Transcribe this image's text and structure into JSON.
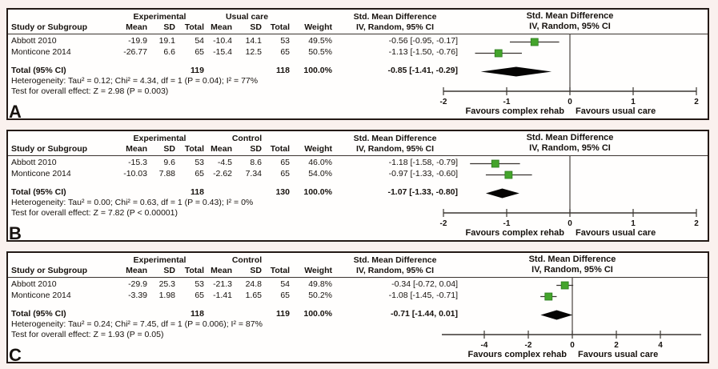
{
  "colors": {
    "marker": "#44a42c",
    "marker_edge": "#2c7a1d",
    "diamond": "#050403",
    "axis_line": "#3a3531",
    "panel_border": "#241a16",
    "panel_background": "#fffefd",
    "page_background": "#faf1ee"
  },
  "chart_data": [
    {
      "type": "forest",
      "panel_label": "A",
      "group1": "Experimental",
      "group2": "Usual care",
      "smd_header": "Std. Mean Difference",
      "col_study": "Study or Subgroup",
      "col_mean": "Mean",
      "col_sd": "SD",
      "col_total": "Total",
      "col_weight": "Weight",
      "col_ci": "IV, Random, 95% CI",
      "plot_header_line1": "Std. Mean Difference",
      "plot_header_line2": "IV, Random, 95% CI",
      "studies": [
        {
          "study": "Abbott 2010",
          "exp_mean": "-19.9",
          "exp_sd": "19.1",
          "exp_total": "54",
          "ctl_mean": "-10.4",
          "ctl_sd": "14.1",
          "ctl_total": "53",
          "weight": "49.5%",
          "ci_text": "-0.56 [-0.95, -0.17]",
          "est": -0.56,
          "lo": -0.95,
          "hi": -0.17
        },
        {
          "study": "Monticone 2014",
          "exp_mean": "-26.77",
          "exp_sd": "6.6",
          "exp_total": "65",
          "ctl_mean": "-15.4",
          "ctl_sd": "12.5",
          "ctl_total": "65",
          "weight": "50.5%",
          "ci_text": "-1.13 [-1.50, -0.76]",
          "est": -1.13,
          "lo": -1.5,
          "hi": -0.76
        }
      ],
      "total": {
        "label": "Total (95% CI)",
        "exp_total": "119",
        "ctl_total": "118",
        "weight": "100.0%",
        "ci_text": "-0.85 [-1.41, -0.29]",
        "est": -0.85,
        "lo": -1.41,
        "hi": -0.29
      },
      "heterogeneity": "Heterogeneity: Tau² = 0.12; Chi² = 4.34, df = 1 (P = 0.04); I² = 77%",
      "overall_test": "Test for overall effect: Z = 2.98 (P = 0.003)",
      "axis": {
        "min": -2,
        "max": 2,
        "ticks": [
          -2,
          -1,
          0,
          1,
          2
        ]
      },
      "favours_left": "Favours complex rehab",
      "favours_right": "Favours usual care"
    },
    {
      "type": "forest",
      "panel_label": "B",
      "group1": "Experimental",
      "group2": "Control",
      "smd_header": "Std. Mean Difference",
      "col_study": "Study or Subgroup",
      "col_mean": "Mean",
      "col_sd": "SD",
      "col_total": "Total",
      "col_weight": "Weight",
      "col_ci": "IV, Random, 95% CI",
      "plot_header_line1": "Std. Mean Difference",
      "plot_header_line2": "IV, Random, 95% CI",
      "studies": [
        {
          "study": "Abbott 2010",
          "exp_mean": "-15.3",
          "exp_sd": "9.6",
          "exp_total": "53",
          "ctl_mean": "-4.5",
          "ctl_sd": "8.6",
          "ctl_total": "65",
          "weight": "46.0%",
          "ci_text": "-1.18 [-1.58, -0.79]",
          "est": -1.18,
          "lo": -1.58,
          "hi": -0.79
        },
        {
          "study": "Monticone 2014",
          "exp_mean": "-10.03",
          "exp_sd": "7.88",
          "exp_total": "65",
          "ctl_mean": "-2.62",
          "ctl_sd": "7.34",
          "ctl_total": "65",
          "weight": "54.0%",
          "ci_text": "-0.97 [-1.33, -0.60]",
          "est": -0.97,
          "lo": -1.33,
          "hi": -0.6
        }
      ],
      "total": {
        "label": "Total (95% CI)",
        "exp_total": "118",
        "ctl_total": "130",
        "weight": "100.0%",
        "ci_text": "-1.07 [-1.33, -0.80]",
        "est": -1.07,
        "lo": -1.33,
        "hi": -0.8
      },
      "heterogeneity": "Heterogeneity: Tau² = 0.00; Chi² = 0.63, df = 1 (P = 0.43); I² = 0%",
      "overall_test": "Test for overall effect: Z = 7.82 (P < 0.00001)",
      "axis": {
        "min": -2,
        "max": 2,
        "ticks": [
          -2,
          -1,
          0,
          1,
          2
        ]
      },
      "favours_left": "Favours complex rehab",
      "favours_right": "Favours usual care"
    },
    {
      "type": "forest",
      "panel_label": "C",
      "group1": "Experimental",
      "group2": "Control",
      "smd_header": "Std. Mean Difference",
      "col_study": "Study or Subgroup",
      "col_mean": "Mean",
      "col_sd": "SD",
      "col_total": "Total",
      "col_weight": "Weight",
      "col_ci": "IV, Random, 95% CI",
      "plot_header_line1": "Std. Mean Difference",
      "plot_header_line2": "IV, Random, 95% CI",
      "studies": [
        {
          "study": "Abbott 2010",
          "exp_mean": "-29.9",
          "exp_sd": "25.3",
          "exp_total": "53",
          "ctl_mean": "-21.3",
          "ctl_sd": "24.8",
          "ctl_total": "54",
          "weight": "49.8%",
          "ci_text": "-0.34 [-0.72, 0.04]",
          "est": -0.34,
          "lo": -0.72,
          "hi": 0.04
        },
        {
          "study": "Monticone 2014",
          "exp_mean": "-3.39",
          "exp_sd": "1.98",
          "exp_total": "65",
          "ctl_mean": "-1.41",
          "ctl_sd": "1.65",
          "ctl_total": "65",
          "weight": "50.2%",
          "ci_text": "-1.08 [-1.45, -0.71]",
          "est": -1.08,
          "lo": -1.45,
          "hi": -0.71
        }
      ],
      "total": {
        "label": "Total (95% CI)",
        "exp_total": "118",
        "ctl_total": "119",
        "weight": "100.0%",
        "ci_text": "-0.71 [-1.44, 0.01]",
        "est": -0.71,
        "lo": -1.44,
        "hi": 0.01
      },
      "heterogeneity": "Heterogeneity: Tau² = 0.24; Chi² = 7.45, df = 1 (P = 0.006); I² = 87%",
      "overall_test": "Test for overall effect: Z = 1.93 (P = 0.05)",
      "axis": {
        "min": -4,
        "max": 4,
        "ticks": [
          -4,
          -2,
          0,
          2,
          4
        ]
      },
      "favours_left": "Favours complex rehab",
      "favours_right": "Favours usual care"
    }
  ]
}
